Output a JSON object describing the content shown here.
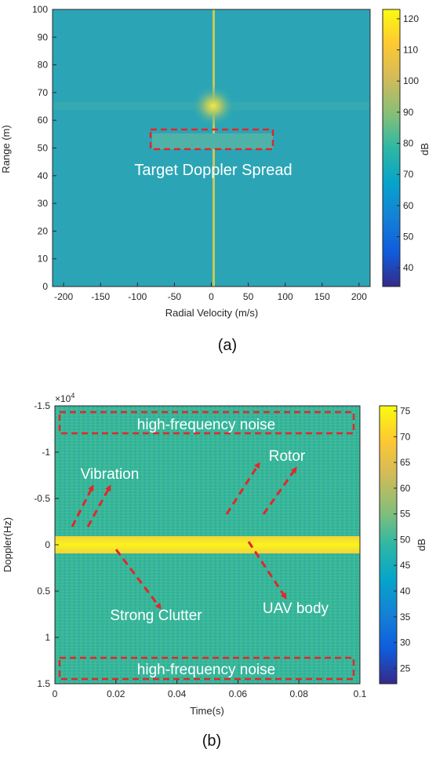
{
  "chart_data": [
    {
      "type": "heatmap",
      "panel_label": "(a)",
      "xlabel": "Radial Velocity (m/s)",
      "ylabel": "Range (m)",
      "xlim": [
        -215,
        215
      ],
      "ylim": [
        0,
        100
      ],
      "x_ticks": [
        "-200",
        "-150",
        "-100",
        "-50",
        "0",
        "50",
        "100",
        "150",
        "200"
      ],
      "y_ticks": [
        "0",
        "10",
        "20",
        "30",
        "40",
        "50",
        "60",
        "70",
        "80",
        "90",
        "100"
      ],
      "colorbar": {
        "label": "dB",
        "range": [
          34,
          123
        ],
        "ticks": [
          "40",
          "50",
          "60",
          "70",
          "80",
          "90",
          "100",
          "110",
          "120"
        ]
      },
      "features": {
        "zero_doppler_line_velocity": 0,
        "target_range": 65,
        "spread_band_range": [
          50,
          56
        ],
        "spread_band_velocity": [
          -80,
          80
        ]
      },
      "annotations": [
        {
          "text": "Target Doppler Spread",
          "box_velocity": [
            -80,
            80
          ],
          "box_range": [
            49,
            56
          ]
        }
      ]
    },
    {
      "type": "heatmap",
      "panel_label": "(b)",
      "xlabel": "Time(s)",
      "ylabel": "Doppler(Hz)",
      "xlim": [
        0,
        0.1
      ],
      "ylim": [
        -15000,
        15000
      ],
      "y_multiplier": "×10",
      "y_multiplier_exp": "4",
      "x_ticks": [
        "0",
        "0.02",
        "0.04",
        "0.06",
        "0.08",
        "0.1"
      ],
      "y_ticks": [
        "-1.5",
        "-1",
        "-0.5",
        "0",
        "0.5",
        "1",
        "1.5"
      ],
      "colorbar": {
        "label": "dB",
        "range": [
          22,
          76
        ],
        "ticks": [
          "25",
          "30",
          "35",
          "40",
          "45",
          "50",
          "55",
          "60",
          "65",
          "70",
          "75"
        ]
      },
      "features": {
        "body_line_doppler": 0
      },
      "annotations": [
        {
          "text": "high-frequency noise",
          "position": "top",
          "box_doppler": [
            -14000,
            -12000
          ]
        },
        {
          "text": "high-frequency noise",
          "position": "bottom",
          "box_doppler": [
            12000,
            14200
          ]
        },
        {
          "text": "Vibration"
        },
        {
          "text": "Rotor"
        },
        {
          "text": "Strong Clutter"
        },
        {
          "text": "UAV body"
        }
      ]
    }
  ],
  "colors": {
    "parula": [
      "#352a87",
      "#0f5cdd",
      "#1481d6",
      "#06a4ca",
      "#2eb7a4",
      "#87bf77",
      "#d1bb59",
      "#fec832",
      "#f9fb0e"
    ],
    "panel_a_bg": "#2ba5b6",
    "panel_b_bg": "#36b59a",
    "annotation_red": "#e3262a"
  }
}
